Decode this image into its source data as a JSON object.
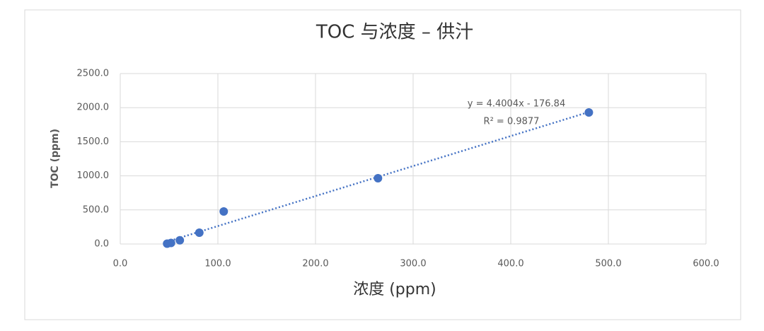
{
  "chart_data": {
    "type": "scatter",
    "title": "TOC 与浓度 – 供汁",
    "x_label": "浓度 (ppm)",
    "y_label": "TOC (ppm)",
    "series": [
      {
        "color": "#4472c4",
        "x": [
          48,
          52,
          61,
          81,
          106,
          264,
          480
        ],
        "values": [
          5,
          15,
          55,
          166,
          477,
          965,
          1929
        ]
      }
    ],
    "trendline": {
      "equation": "y = 4.4004x - 176.84",
      "r2": "R² = 0.9877",
      "slope": 4.4004,
      "intercept": -176.84
    },
    "xlim": [
      0,
      600
    ],
    "xticks": [
      {
        "value": 0,
        "label": "0.0"
      },
      {
        "value": 100,
        "label": "100.0"
      },
      {
        "value": 200,
        "label": "200.0"
      },
      {
        "value": 300,
        "label": "300.0"
      },
      {
        "value": 400,
        "label": "400.0"
      },
      {
        "value": 500,
        "label": "500.0"
      },
      {
        "value": 600,
        "label": "600.0"
      }
    ],
    "ylim": [
      0,
      2500
    ],
    "yticks": [
      {
        "value": 0,
        "label": "0.0"
      },
      {
        "value": 500,
        "label": "500.0"
      },
      {
        "value": 1000,
        "label": "1000.0"
      },
      {
        "value": 1500,
        "label": "1500.0"
      },
      {
        "value": 2000,
        "label": "2000.0"
      },
      {
        "value": 2500,
        "label": "2500.0"
      }
    ],
    "grid": true
  }
}
